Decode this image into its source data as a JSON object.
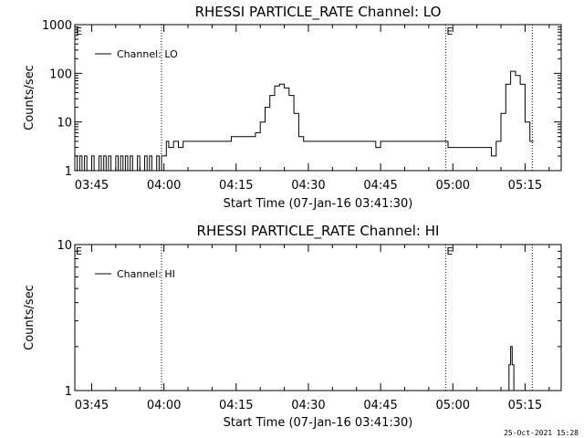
{
  "chart_data": [
    {
      "type": "line",
      "title": "RHESSI PARTICLE_RATE Channel: LO",
      "xlabel": "Start Time (07-Jan-16 03:41:30)",
      "ylabel": "Counts/sec",
      "y_scale": "log",
      "xlim": [
        "03:41:30",
        "05:22:30"
      ],
      "ylim": [
        1,
        1000
      ],
      "x_ticks": [
        "03:45",
        "04:00",
        "04:15",
        "04:30",
        "04:45",
        "05:00",
        "05:15"
      ],
      "y_ticks": [
        "1",
        "10",
        "100",
        "1000"
      ],
      "legend": {
        "placement": "top-left",
        "entries": [
          "Channel: LO"
        ]
      },
      "markers": [
        {
          "time": "03:41:30",
          "label": "E"
        },
        {
          "time": "03:59:30",
          "label": ""
        },
        {
          "time": "04:58:30",
          "label": "E"
        },
        {
          "time": "05:16:30",
          "label": ""
        }
      ],
      "series": [
        {
          "name": "Channel: LO",
          "x": [
            "03:41:30",
            "03:42:00",
            "03:42:30",
            "03:43:00",
            "03:43:30",
            "03:44:00",
            "03:44:30",
            "03:45:00",
            "03:45:30",
            "03:46:00",
            "03:46:30",
            "03:47:00",
            "03:47:30",
            "03:48:00",
            "03:48:30",
            "03:49:00",
            "03:49:30",
            "03:50:00",
            "03:50:30",
            "03:51:00",
            "03:51:30",
            "03:52:00",
            "03:52:30",
            "03:53:00",
            "03:53:30",
            "03:54:00",
            "03:54:30",
            "03:55:00",
            "03:55:30",
            "03:56:00",
            "03:56:30",
            "03:57:00",
            "03:57:30",
            "03:58:00",
            "03:58:30",
            "03:59:00",
            "03:59:30",
            "04:00:00",
            "04:00:30",
            "04:01:00",
            "04:02:00",
            "04:03:00",
            "04:04:00",
            "04:05:00",
            "04:06:00",
            "04:07:00",
            "04:08:00",
            "04:09:00",
            "04:10:00",
            "04:11:00",
            "04:12:00",
            "04:13:00",
            "04:14:00",
            "04:15:00",
            "04:16:00",
            "04:17:00",
            "04:18:00",
            "04:19:00",
            "04:20:00",
            "04:21:00",
            "04:22:00",
            "04:23:00",
            "04:24:00",
            "04:25:00",
            "04:26:00",
            "04:27:00",
            "04:28:00",
            "04:29:00",
            "04:30:00",
            "04:31:00",
            "04:32:00",
            "04:33:00",
            "04:34:00",
            "04:35:00",
            "04:36:00",
            "04:37:00",
            "04:38:00",
            "04:39:00",
            "04:40:00",
            "04:41:00",
            "04:42:00",
            "04:43:00",
            "04:44:00",
            "04:45:00",
            "04:46:00",
            "04:47:00",
            "04:48:00",
            "04:49:00",
            "04:50:00",
            "04:51:00",
            "04:52:00",
            "04:53:00",
            "04:54:00",
            "04:55:00",
            "04:56:00",
            "04:57:00",
            "04:58:00",
            "04:59:00",
            "05:00:00",
            "05:01:00",
            "05:02:00",
            "05:03:00",
            "05:04:00",
            "05:05:00",
            "05:06:00",
            "05:07:00",
            "05:08:00",
            "05:09:00",
            "05:10:00",
            "05:11:00",
            "05:12:00",
            "05:13:00",
            "05:14:00",
            "05:15:00",
            "05:16:00"
          ],
          "values": [
            2,
            1,
            2,
            1,
            2,
            1,
            1,
            2,
            1,
            1,
            2,
            1,
            2,
            1,
            2,
            1,
            1,
            2,
            1,
            2,
            1,
            2,
            1,
            2,
            1,
            1,
            2,
            1,
            1,
            2,
            1,
            2,
            1,
            1,
            2,
            1,
            2,
            2,
            4,
            3,
            4,
            3,
            4,
            4,
            4,
            4,
            4,
            4,
            4,
            4,
            4,
            4,
            5,
            5,
            5,
            5,
            5,
            6,
            10,
            20,
            35,
            55,
            60,
            50,
            35,
            15,
            5,
            4,
            4,
            4,
            4,
            4,
            4,
            4,
            4,
            4,
            4,
            4,
            4,
            4,
            4,
            4,
            3,
            4,
            4,
            4,
            4,
            4,
            4,
            4,
            4,
            4,
            4,
            4,
            4,
            4,
            4,
            3,
            3,
            3,
            3,
            3,
            3,
            3,
            3,
            3,
            2,
            4,
            15,
            60,
            110,
            90,
            60,
            10,
            4
          ]
        }
      ]
    },
    {
      "type": "line",
      "title": "RHESSI PARTICLE_RATE Channel: HI",
      "xlabel": "Start Time (07-Jan-16 03:41:30)",
      "ylabel": "Counts/sec",
      "y_scale": "log",
      "xlim": [
        "03:41:30",
        "05:22:30"
      ],
      "ylim": [
        1,
        10
      ],
      "x_ticks": [
        "03:45",
        "04:00",
        "04:15",
        "04:30",
        "04:45",
        "05:00",
        "05:15"
      ],
      "y_ticks": [
        "1",
        "10"
      ],
      "legend": {
        "placement": "top-left",
        "entries": [
          "Channel: HI"
        ]
      },
      "markers": [
        {
          "time": "03:41:30",
          "label": "E"
        },
        {
          "time": "03:59:30",
          "label": ""
        },
        {
          "time": "04:58:30",
          "label": "E"
        },
        {
          "time": "05:16:30",
          "label": ""
        }
      ],
      "series": [
        {
          "name": "Channel: HI",
          "x": [
            "05:11:00",
            "05:11:20",
            "05:11:40",
            "05:12:00",
            "05:12:20",
            "05:12:40",
            "05:13:00"
          ],
          "values": [
            1,
            1,
            1.5,
            2,
            1.5,
            1,
            1
          ]
        }
      ]
    }
  ],
  "footer": {
    "timestamp": "25-Oct-2021 15:28"
  }
}
